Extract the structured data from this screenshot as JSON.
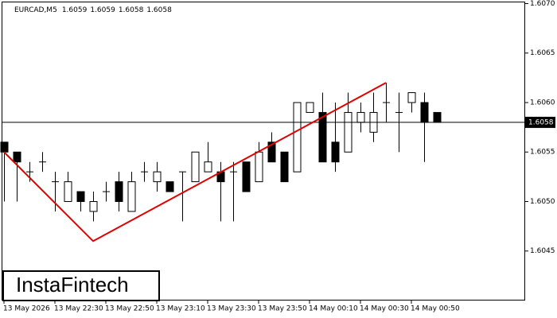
{
  "chart_data": {
    "type": "candlestick",
    "header": {
      "symbol": "EURCAD,M5",
      "values": [
        1.6059,
        1.6059,
        1.6058,
        1.6058
      ]
    },
    "categories": [
      "13 May 2026",
      null,
      null,
      null,
      "13 May 22:30",
      null,
      null,
      null,
      "13 May 22:50",
      null,
      null,
      null,
      "13 May 23:10",
      null,
      null,
      null,
      "13 May 23:30",
      null,
      null,
      null,
      "13 May 23:50",
      null,
      null,
      null,
      "14 May 00:10",
      null,
      null,
      null,
      "14 May 00:30",
      null,
      null,
      null,
      "14 May 00:50",
      null,
      null
    ],
    "open": [
      1.6056,
      1.6055,
      1.6053,
      1.6054,
      1.6052,
      1.605,
      1.6051,
      1.6049,
      1.6051,
      1.6052,
      1.6049,
      1.6053,
      1.6052,
      1.6052,
      1.6053,
      1.6052,
      1.6053,
      1.6053,
      1.6053,
      1.6054,
      1.6052,
      1.6056,
      1.6055,
      1.6053,
      1.6059,
      1.6059,
      1.6056,
      1.6055,
      1.6058,
      1.6057,
      1.606,
      1.6059,
      1.606,
      1.606,
      1.6059
    ],
    "high": [
      1.6056,
      1.6055,
      1.6054,
      1.6055,
      1.6053,
      1.6053,
      1.6051,
      1.6051,
      1.6052,
      1.6053,
      1.6053,
      1.6054,
      1.6054,
      1.6052,
      1.6053,
      1.6055,
      1.6056,
      1.6054,
      1.6054,
      1.6054,
      1.6056,
      1.6057,
      1.6055,
      1.606,
      1.606,
      1.6061,
      1.606,
      1.6061,
      1.606,
      1.6061,
      1.6062,
      1.6061,
      1.6061,
      1.6061,
      1.6059
    ],
    "low": [
      1.605,
      1.605,
      1.6052,
      1.6053,
      1.6049,
      1.605,
      1.6049,
      1.6048,
      1.605,
      1.6049,
      1.6049,
      1.6052,
      1.6051,
      1.6051,
      1.6048,
      1.6052,
      1.6053,
      1.6048,
      1.6048,
      1.6051,
      1.6052,
      1.6054,
      1.6052,
      1.6053,
      1.6059,
      1.6054,
      1.6053,
      1.6055,
      1.6057,
      1.6056,
      1.6058,
      1.6055,
      1.6059,
      1.6054,
      1.6058
    ],
    "close": [
      1.6055,
      1.6054,
      1.6053,
      1.6054,
      1.6052,
      1.6052,
      1.605,
      1.605,
      1.6051,
      1.605,
      1.6052,
      1.6053,
      1.6053,
      1.6051,
      1.6053,
      1.6055,
      1.6054,
      1.6052,
      1.6053,
      1.6051,
      1.6055,
      1.6054,
      1.6052,
      1.606,
      1.606,
      1.6054,
      1.6054,
      1.6059,
      1.6059,
      1.6059,
      1.606,
      1.6059,
      1.6061,
      1.6058,
      1.6058
    ],
    "up_color": "#ffffff",
    "down_color": "#000000",
    "edge_color": "#000000",
    "ylim": [
      1.604,
      1.60702
    ],
    "yticks": [
      {
        "value": 1.6045,
        "label": "1.6045"
      },
      {
        "value": 1.605,
        "label": "1.6050"
      },
      {
        "value": 1.6055,
        "label": "1.6055"
      },
      {
        "value": 1.606,
        "label": "1.6060"
      },
      {
        "value": 1.6065,
        "label": "1.6065"
      },
      {
        "value": 1.607,
        "label": "1.6070"
      }
    ],
    "last_price": {
      "value": 1.6058,
      "label": "1.6058"
    },
    "pattern_line": {
      "color": "#e00000",
      "index": [
        0,
        7,
        30
      ],
      "price": [
        1.6055,
        1.6046,
        1.6062
      ]
    },
    "grid": false,
    "watermark": "InstaFintech"
  }
}
